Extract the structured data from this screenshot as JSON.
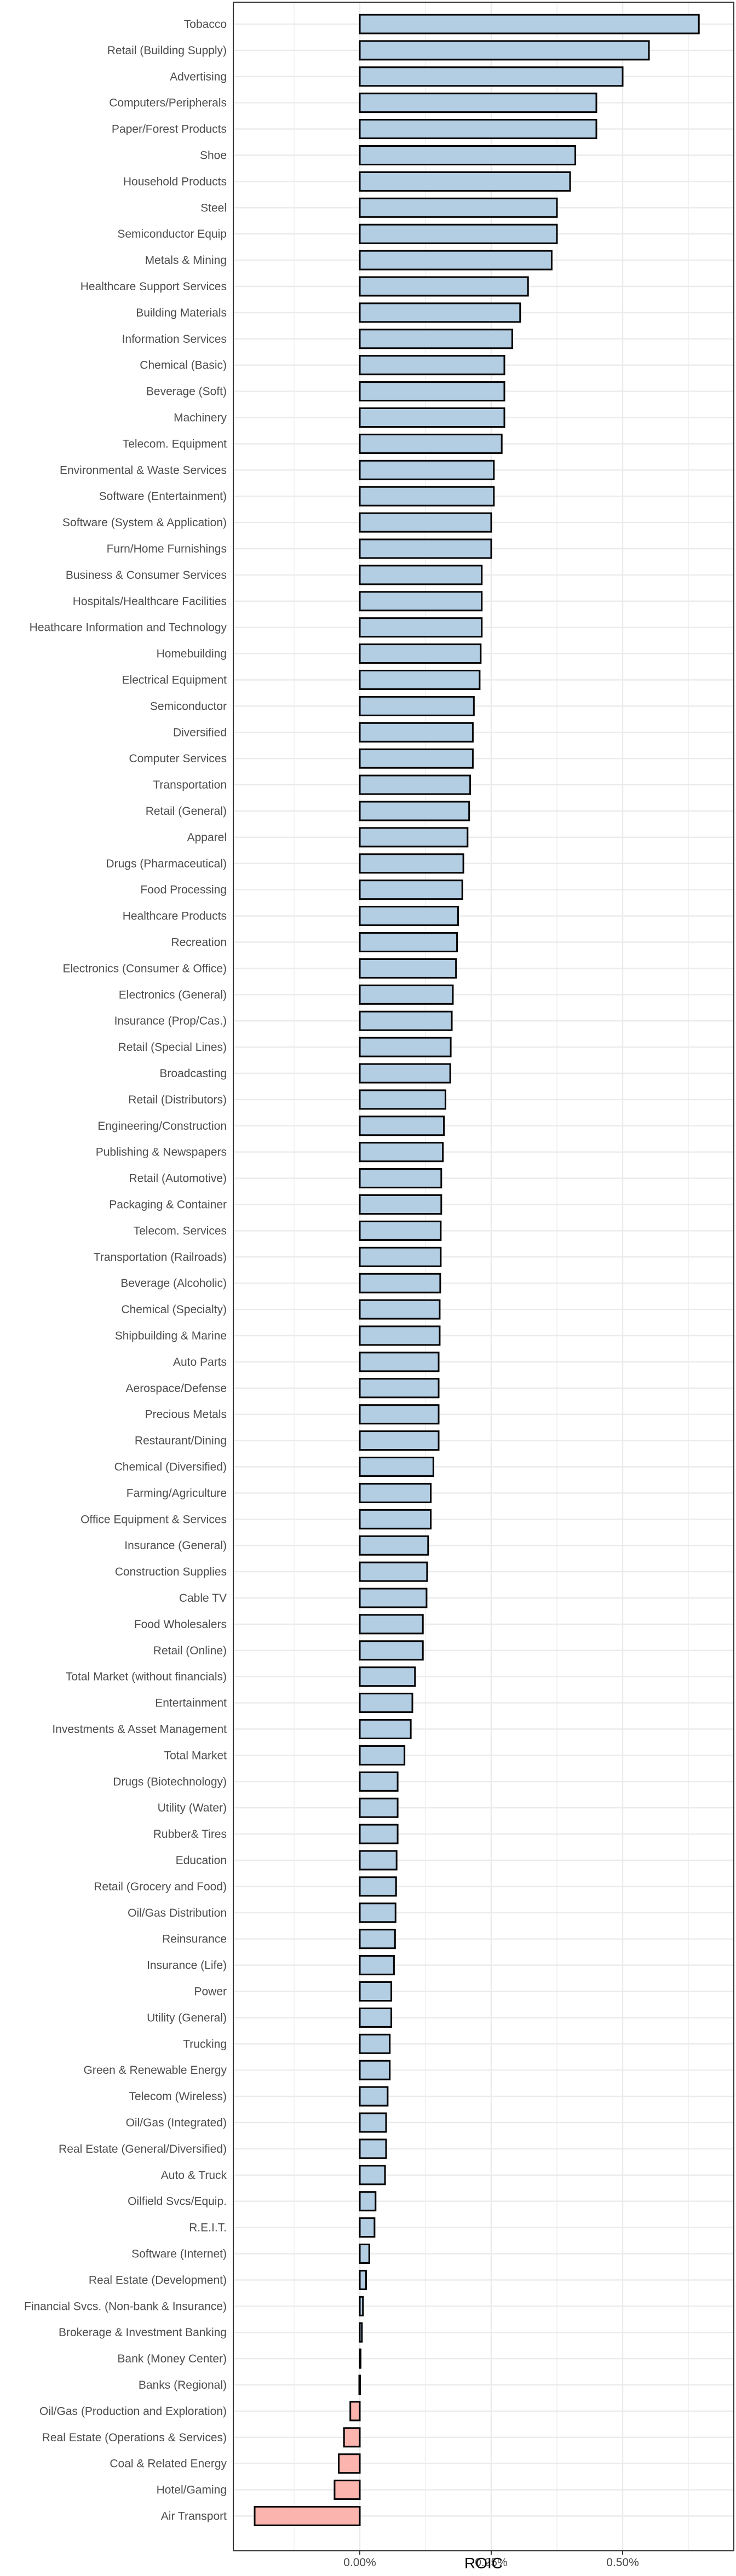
{
  "chart_data": {
    "type": "bar",
    "orientation": "horizontal",
    "xlabel": "ROIC",
    "ylabel": "",
    "title": "",
    "xlim": [
      -0.2,
      0.67
    ],
    "x_ticks": [
      {
        "value": 0,
        "label": "0.00%"
      },
      {
        "value": 0.25,
        "label": "0.25%"
      },
      {
        "value": 0.5,
        "label": "0.50%"
      }
    ],
    "grid": true,
    "legend": "none",
    "colors": {
      "positive": "#b3cde3",
      "negative": "#fbb4ae",
      "outline": "#000000",
      "grid": "#ebebeb",
      "panel_border": "#333333"
    },
    "categories": [
      "Tobacco",
      "Retail (Building Supply)",
      "Advertising",
      "Computers/Peripherals",
      "Paper/Forest Products",
      "Shoe",
      "Household Products",
      "Steel",
      "Semiconductor Equip",
      "Metals & Mining",
      "Healthcare Support Services",
      "Building Materials",
      "Information Services",
      "Chemical (Basic)",
      "Beverage (Soft)",
      "Machinery",
      "Telecom. Equipment",
      "Environmental & Waste Services",
      "Software (Entertainment)",
      "Software (System & Application)",
      "Furn/Home Furnishings",
      "Business & Consumer Services",
      "Hospitals/Healthcare Facilities",
      "Heathcare Information and Technology",
      "Homebuilding",
      "Electrical Equipment",
      "Semiconductor",
      "Diversified",
      "Computer Services",
      "Transportation",
      "Retail (General)",
      "Apparel",
      "Drugs (Pharmaceutical)",
      "Food Processing",
      "Healthcare Products",
      "Recreation",
      "Electronics (Consumer & Office)",
      "Electronics (General)",
      "Insurance (Prop/Cas.)",
      "Retail (Special Lines)",
      "Broadcasting",
      "Retail (Distributors)",
      "Engineering/Construction",
      "Publishing & Newspapers",
      "Retail (Automotive)",
      "Packaging & Container",
      "Telecom. Services",
      "Transportation (Railroads)",
      "Beverage (Alcoholic)",
      "Chemical (Specialty)",
      "Shipbuilding & Marine",
      "Auto Parts",
      "Aerospace/Defense",
      "Precious Metals",
      "Restaurant/Dining",
      "Chemical (Diversified)",
      "Farming/Agriculture",
      "Office Equipment & Services",
      "Insurance (General)",
      "Construction Supplies",
      "Cable TV",
      "Food Wholesalers",
      "Retail (Online)",
      "Total Market (without financials)",
      "Entertainment",
      "Investments & Asset Management",
      "Total Market",
      "Drugs (Biotechnology)",
      "Utility (Water)",
      "Rubber& Tires",
      "Education",
      "Retail (Grocery and Food)",
      "Oil/Gas Distribution",
      "Reinsurance",
      "Insurance (Life)",
      "Power",
      "Utility (General)",
      "Trucking",
      "Green & Renewable Energy",
      "Telecom (Wireless)",
      "Oil/Gas (Integrated)",
      "Real Estate (General/Diversified)",
      "Auto & Truck",
      "Oilfield Svcs/Equip.",
      "R.E.I.T.",
      "Software (Internet)",
      "Real Estate (Development)",
      "Financial Svcs. (Non-bank & Insurance)",
      "Brokerage & Investment Banking",
      "Bank (Money Center)",
      "Banks (Regional)",
      "Oil/Gas (Production and Exploration)",
      "Real Estate (Operations & Services)",
      "Coal & Related Energy",
      "Hotel/Gaming",
      "Air Transport"
    ],
    "values": [
      0.645,
      0.55,
      0.5,
      0.45,
      0.45,
      0.41,
      0.4,
      0.375,
      0.375,
      0.365,
      0.32,
      0.305,
      0.29,
      0.275,
      0.275,
      0.275,
      0.27,
      0.255,
      0.255,
      0.25,
      0.25,
      0.232,
      0.232,
      0.232,
      0.23,
      0.228,
      0.217,
      0.215,
      0.215,
      0.21,
      0.208,
      0.205,
      0.197,
      0.195,
      0.187,
      0.185,
      0.183,
      0.177,
      0.175,
      0.173,
      0.172,
      0.163,
      0.16,
      0.158,
      0.155,
      0.155,
      0.154,
      0.154,
      0.153,
      0.152,
      0.152,
      0.15,
      0.15,
      0.15,
      0.15,
      0.14,
      0.135,
      0.135,
      0.13,
      0.128,
      0.127,
      0.12,
      0.12,
      0.105,
      0.1,
      0.097,
      0.085,
      0.072,
      0.072,
      0.072,
      0.07,
      0.069,
      0.068,
      0.067,
      0.065,
      0.06,
      0.06,
      0.057,
      0.057,
      0.053,
      0.05,
      0.05,
      0.048,
      0.03,
      0.028,
      0.018,
      0.012,
      0.006,
      0.004,
      0.001,
      -0.001,
      -0.018,
      -0.03,
      -0.04,
      -0.048,
      -0.2
    ]
  }
}
